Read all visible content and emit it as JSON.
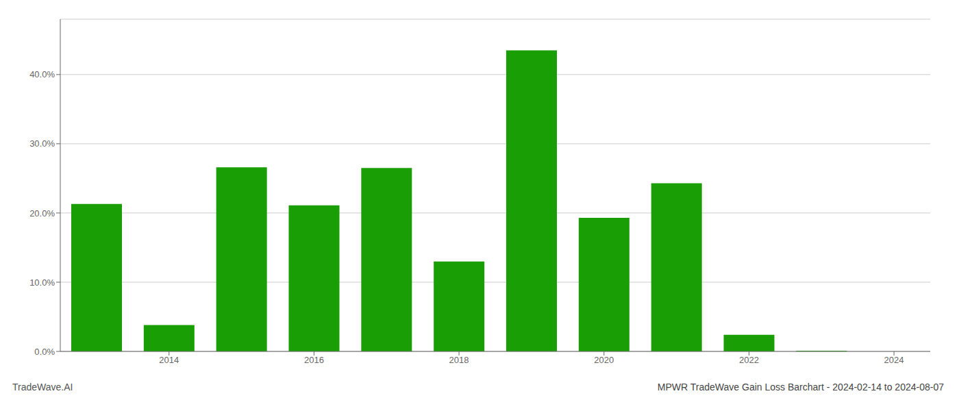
{
  "chart_data": {
    "type": "bar",
    "title": "MPWR TradeWave Gain Loss Barchart - 2024-02-14 to 2024-08-07",
    "annotations": [
      "TradeWave.AI"
    ],
    "x": [
      2013,
      2014,
      2015,
      2016,
      2017,
      2018,
      2019,
      2020,
      2021,
      2022,
      2023
    ],
    "values": [
      0.213,
      0.038,
      0.266,
      0.211,
      0.265,
      0.13,
      0.435,
      0.193,
      0.243,
      0.024,
      0.001
    ],
    "color": "#1a9e06",
    "xlim": [
      2012.5,
      2024.5
    ],
    "xticks": [
      2014,
      2016,
      2018,
      2020,
      2022,
      2024
    ],
    "ylim": [
      0,
      0.48
    ],
    "yticks": [
      {
        "value": 0.0,
        "label": "0.0%"
      },
      {
        "value": 0.1,
        "label": "10.0%"
      },
      {
        "value": 0.2,
        "label": "20.0%"
      },
      {
        "value": 0.3,
        "label": "30.0%"
      },
      {
        "value": 0.4,
        "label": "40.0%"
      }
    ],
    "grid": true
  }
}
